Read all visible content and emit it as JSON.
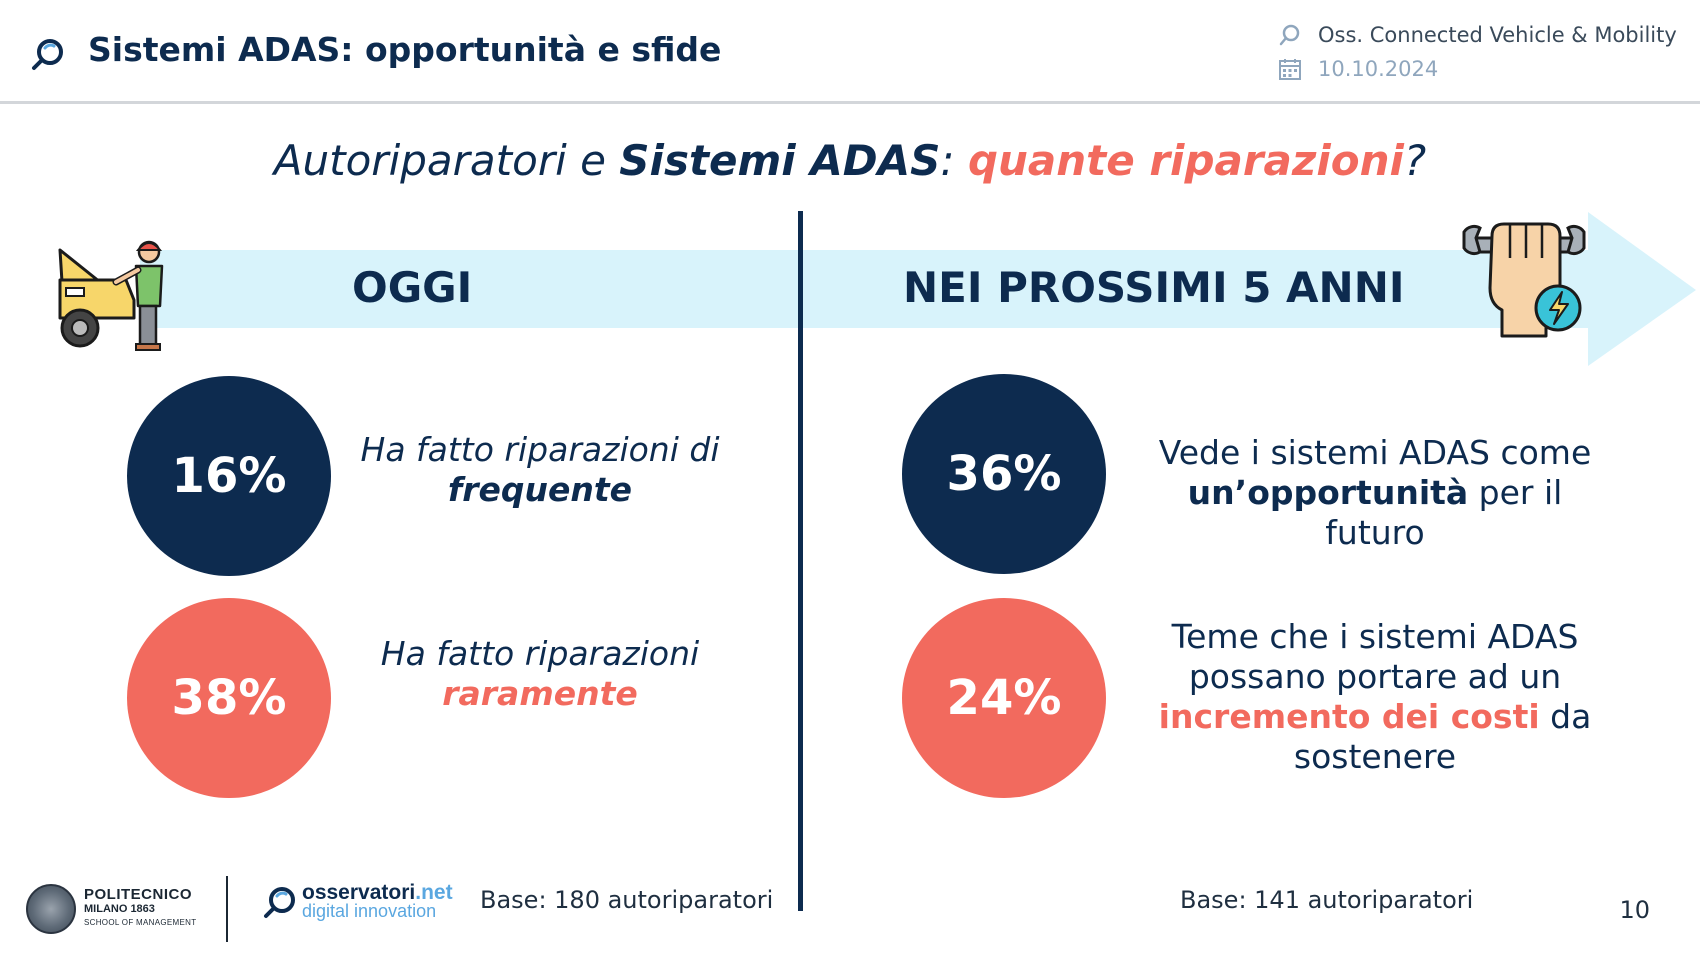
{
  "header": {
    "title": "Sistemi ADAS: opportunità e sfide",
    "observatory": "Oss. Connected Vehicle & Mobility",
    "date": "10.10.2024"
  },
  "subtitle": {
    "part1": "Autoriparatori e ",
    "part2": "Sistemi ADAS",
    "part3": ": ",
    "part4": "quante riparazioni",
    "part5": "?"
  },
  "timeline": {
    "today_label": "OGGI",
    "future_label": "NEI PROSSIMI 5 ANNI"
  },
  "today": {
    "stats": [
      {
        "value": "16%",
        "text_line1": "Ha fatto riparazioni di",
        "text_emph": "frequente",
        "color": "#0d2b4f"
      },
      {
        "value": "38%",
        "text_line1": "Ha fatto riparazioni",
        "text_emph": "raramente",
        "color": "#f26a5e"
      }
    ],
    "base": "Base: 180 autoriparatori"
  },
  "future": {
    "stats": [
      {
        "value": "36%",
        "text_line1": "Vede i sistemi ADAS come",
        "text_emph": "un’opportunità",
        "text_tail": " per il futuro",
        "color": "#0d2b4f"
      },
      {
        "value": "24%",
        "text_line1": "Teme che i sistemi ADAS",
        "text_line2": "possano portare ad un",
        "text_emph": "incremento dei costi",
        "text_tail": " da",
        "text_line4": "sostenere",
        "color": "#f26a5e"
      }
    ],
    "base": "Base: 141 autoriparatori"
  },
  "footer": {
    "polimi_name": "POLITECNICO",
    "polimi_city": "MILANO 1863",
    "polimi_school": "SCHOOL OF MANAGEMENT",
    "osservatori_name": "osservatori",
    "osservatori_tld": ".net",
    "osservatori_tagline": "digital innovation",
    "page_number": "10"
  },
  "colors": {
    "navy": "#0d2b4f",
    "coral": "#f26a5e",
    "arrow": "#d8f3fb"
  },
  "icons": [
    "search-logo-icon",
    "calendar-icon",
    "mechanic-car-icon",
    "fist-wrench-bolt-icon"
  ]
}
